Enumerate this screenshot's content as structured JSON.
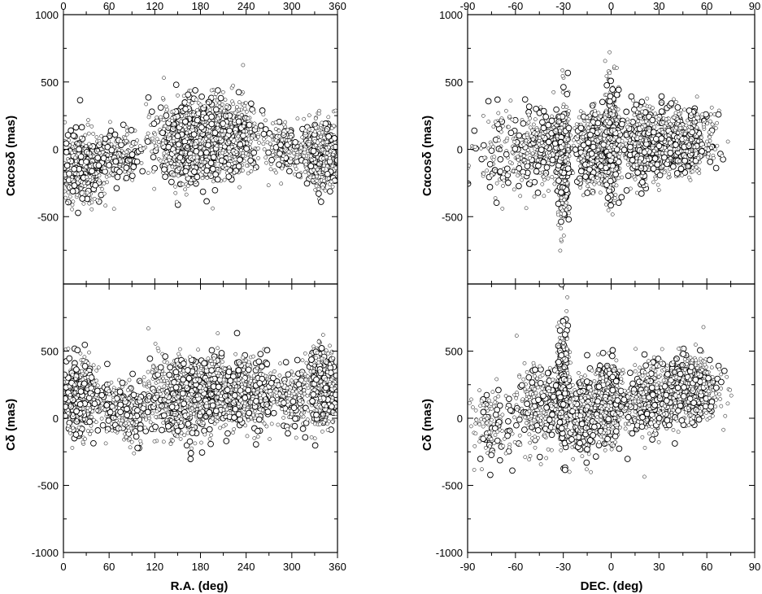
{
  "chart_data": {
    "type": "scatter",
    "panels": [
      {
        "id": "ra-calpha",
        "x_axis": "ra",
        "y_axis": "calpha",
        "xlim": [
          0,
          360
        ],
        "ylim": [
          -1000,
          1000
        ],
        "show_bottom_ticklabels": false,
        "show_top_ticklabels": true,
        "show_xlabel": false,
        "ylabel": "Cαcosδ (mas)",
        "yticks": [
          500,
          0,
          -500
        ],
        "ytick_labels": [
          "500",
          "0",
          "-500"
        ],
        "y_top_label": "1000",
        "y_bottom_label": ""
      },
      {
        "id": "ra-cdelta",
        "x_axis": "ra",
        "y_axis": "cdelta",
        "xlim": [
          0,
          360
        ],
        "ylim": [
          -1000,
          1000
        ],
        "show_bottom_ticklabels": true,
        "show_top_ticklabels": false,
        "show_xlabel": true,
        "ylabel": "Cδ (mas)",
        "yticks": [
          500,
          0,
          -500
        ],
        "ytick_labels": [
          "500",
          "0",
          "-500"
        ],
        "y_top_label": "",
        "y_bottom_label": "-1000"
      },
      {
        "id": "dec-calpha",
        "x_axis": "dec",
        "y_axis": "calpha",
        "xlim": [
          -90,
          90
        ],
        "ylim": [
          -1000,
          1000
        ],
        "show_bottom_ticklabels": false,
        "show_top_ticklabels": true,
        "show_xlabel": false,
        "ylabel": "Cαcosδ (mas)",
        "yticks": [
          500,
          0,
          -500
        ],
        "ytick_labels": [
          "500",
          "0",
          "-500"
        ],
        "y_top_label": "1000",
        "y_bottom_label": ""
      },
      {
        "id": "dec-cdelta",
        "x_axis": "dec",
        "y_axis": "cdelta",
        "xlim": [
          -90,
          90
        ],
        "ylim": [
          -1000,
          1000
        ],
        "show_bottom_ticklabels": true,
        "show_top_ticklabels": false,
        "show_xlabel": true,
        "ylabel": "Cδ (mas)",
        "yticks": [
          500,
          0,
          -500
        ],
        "ytick_labels": [
          "500",
          "0",
          "-500"
        ],
        "y_top_label": "",
        "y_bottom_label": "-1000"
      }
    ],
    "ra_ticks": [
      0,
      60,
      120,
      180,
      240,
      300,
      360
    ],
    "ra_tick_labels": [
      "0",
      "60",
      "120",
      "180",
      "240",
      "300",
      "360"
    ],
    "dec_ticks": [
      -90,
      -60,
      -30,
      0,
      30,
      60,
      90
    ],
    "dec_tick_labels": [
      "-90",
      "-60",
      "-30",
      "0",
      "30",
      "60",
      "90"
    ],
    "xlabel_ra": "R.A. (deg)",
    "xlabel_dec": "DEC. (deg)",
    "marker": "open-circle",
    "grid": false,
    "legend": "none",
    "clusters_ra_calpha": [
      {
        "x_center": 25,
        "x_spread": 25,
        "y_mean": -130,
        "y_sd": 130,
        "weight": 0.16
      },
      {
        "x_center": 75,
        "x_spread": 25,
        "y_mean": -60,
        "y_sd": 95,
        "weight": 0.07
      },
      {
        "x_center": 160,
        "x_spread": 35,
        "y_mean": 60,
        "y_sd": 150,
        "weight": 0.28
      },
      {
        "x_center": 215,
        "x_spread": 40,
        "y_mean": 90,
        "y_sd": 140,
        "weight": 0.24
      },
      {
        "x_center": 290,
        "x_spread": 20,
        "y_mean": 10,
        "y_sd": 90,
        "weight": 0.05
      },
      {
        "x_center": 340,
        "x_spread": 20,
        "y_mean": -40,
        "y_sd": 120,
        "weight": 0.2
      }
    ],
    "clusters_ra_cdelta": [
      {
        "x_center": 20,
        "x_spread": 22,
        "y_mean": 160,
        "y_sd": 140,
        "weight": 0.17
      },
      {
        "x_center": 80,
        "x_spread": 30,
        "y_mean": 40,
        "y_sd": 120,
        "weight": 0.09
      },
      {
        "x_center": 165,
        "x_spread": 45,
        "y_mean": 170,
        "y_sd": 140,
        "weight": 0.34
      },
      {
        "x_center": 240,
        "x_spread": 35,
        "y_mean": 180,
        "y_sd": 120,
        "weight": 0.2
      },
      {
        "x_center": 300,
        "x_spread": 20,
        "y_mean": 130,
        "y_sd": 110,
        "weight": 0.05
      },
      {
        "x_center": 340,
        "x_spread": 18,
        "y_mean": 230,
        "y_sd": 150,
        "weight": 0.15
      }
    ],
    "clusters_dec_calpha": [
      {
        "x_center": -70,
        "x_spread": 15,
        "y_mean": 0,
        "y_sd": 150,
        "weight": 0.05
      },
      {
        "x_center": -45,
        "x_spread": 12,
        "y_mean": 20,
        "y_sd": 140,
        "weight": 0.1
      },
      {
        "x_center": -30,
        "x_spread": 3,
        "y_mean": -60,
        "y_sd": 230,
        "weight": 0.14
      },
      {
        "x_center": -12,
        "x_spread": 8,
        "y_mean": -10,
        "y_sd": 140,
        "weight": 0.16
      },
      {
        "x_center": 0,
        "x_spread": 4,
        "y_mean": 60,
        "y_sd": 200,
        "weight": 0.17
      },
      {
        "x_center": 20,
        "x_spread": 10,
        "y_mean": 30,
        "y_sd": 130,
        "weight": 0.16
      },
      {
        "x_center": 45,
        "x_spread": 15,
        "y_mean": 50,
        "y_sd": 120,
        "weight": 0.22
      }
    ],
    "clusters_dec_cdelta": [
      {
        "x_center": -75,
        "x_spread": 12,
        "y_mean": -50,
        "y_sd": 140,
        "weight": 0.05
      },
      {
        "x_center": -45,
        "x_spread": 12,
        "y_mean": 80,
        "y_sd": 150,
        "weight": 0.1
      },
      {
        "x_center": -30,
        "x_spread": 3,
        "y_mean": 240,
        "y_sd": 200,
        "weight": 0.14
      },
      {
        "x_center": -18,
        "x_spread": 6,
        "y_mean": -10,
        "y_sd": 140,
        "weight": 0.12
      },
      {
        "x_center": -2,
        "x_spread": 8,
        "y_mean": 120,
        "y_sd": 140,
        "weight": 0.19
      },
      {
        "x_center": 25,
        "x_spread": 12,
        "y_mean": 140,
        "y_sd": 120,
        "weight": 0.18
      },
      {
        "x_center": 50,
        "x_spread": 15,
        "y_mean": 220,
        "y_sd": 120,
        "weight": 0.22
      }
    ]
  }
}
